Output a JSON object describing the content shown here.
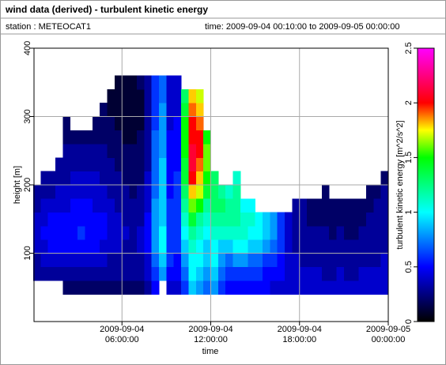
{
  "header": {
    "title": "wind data (derived) - turbulent kinetic energy",
    "station": "station : METEOCAT1",
    "time": "time: 2009-09-04 00:10:00 to 2009-09-05 00:00:00"
  },
  "chart_data": {
    "type": "heatmap",
    "xlabel": "time",
    "ylabel": "height [m]",
    "colorbar_label": "turbulent kinetic energy [m^2/s^2]",
    "xlim": [
      0,
      24
    ],
    "ylim": [
      0,
      400
    ],
    "clim": [
      0,
      2.5
    ],
    "xticks": [
      {
        "value": 6,
        "label": "2009-09-04\n06:00:00"
      },
      {
        "value": 12,
        "label": "2009-09-04\n12:00:00"
      },
      {
        "value": 18,
        "label": "2009-09-04\n18:00:00"
      },
      {
        "value": 24,
        "label": "2009-09-05\n00:00:00"
      }
    ],
    "yticks": [
      100,
      200,
      300,
      400
    ],
    "cticks": [
      0,
      0.5,
      1,
      1.5,
      2,
      2.5
    ],
    "grid": true,
    "colormap": [
      [
        0,
        "#000000"
      ],
      [
        0.5,
        "#0000ff"
      ],
      [
        1,
        "#00ffff"
      ],
      [
        1.5,
        "#00ff00"
      ],
      [
        1.75,
        "#ffff00"
      ],
      [
        2,
        "#ff0000"
      ],
      [
        2.5,
        "#ff00ff"
      ]
    ],
    "x_bins": [
      0,
      0.5,
      1,
      1.5,
      2,
      2.5,
      3,
      3.5,
      4,
      4.5,
      5,
      5.5,
      6,
      6.5,
      7,
      7.5,
      8,
      8.5,
      9,
      9.5,
      10,
      10.5,
      11,
      11.5,
      12,
      12.5,
      13,
      13.5,
      14,
      14.5,
      15,
      15.5,
      16,
      16.5,
      17,
      17.5,
      18,
      18.5,
      19,
      19.5,
      20,
      20.5,
      21,
      21.5,
      22,
      22.5,
      23,
      23.5,
      24
    ],
    "y_bins": [
      40,
      60,
      80,
      100,
      120,
      140,
      160,
      180,
      200,
      220,
      240,
      260,
      280,
      300,
      320,
      340,
      360,
      380
    ],
    "z": [
      [
        null,
        0.3,
        0.3,
        0.4,
        0.4,
        0.4,
        0.3,
        0.3,
        null,
        null,
        null,
        null,
        null,
        null,
        null,
        null,
        null
      ],
      [
        null,
        0.3,
        0.4,
        0.4,
        0.5,
        0.4,
        0.4,
        0.3,
        0.3,
        null,
        null,
        null,
        null,
        null,
        null,
        null,
        null
      ],
      [
        null,
        0.3,
        0.4,
        0.5,
        0.5,
        0.5,
        0.4,
        0.3,
        0.3,
        null,
        null,
        null,
        null,
        null,
        null,
        null,
        null
      ],
      [
        null,
        0.3,
        0.4,
        0.5,
        0.5,
        0.5,
        0.4,
        0.4,
        0.3,
        0.3,
        null,
        null,
        null,
        null,
        null,
        null,
        null
      ],
      [
        0.2,
        0.3,
        0.4,
        0.5,
        0.5,
        0.5,
        0.4,
        0.4,
        0.3,
        0.3,
        0.3,
        0.2,
        0.2,
        null,
        null,
        null,
        null
      ],
      [
        0.2,
        0.3,
        0.4,
        0.5,
        0.5,
        0.5,
        0.5,
        0.4,
        0.4,
        0.3,
        0.3,
        0.2,
        null,
        null,
        null,
        null,
        null
      ],
      [
        0.2,
        0.3,
        0.4,
        0.5,
        0.6,
        0.5,
        0.5,
        0.4,
        0.4,
        0.3,
        0.3,
        0.2,
        null,
        null,
        null,
        null,
        null
      ],
      [
        0.2,
        0.3,
        0.4,
        0.5,
        0.5,
        0.5,
        0.5,
        0.4,
        0.4,
        0.3,
        0.3,
        0.2,
        null,
        null,
        null,
        null,
        null
      ],
      [
        0.2,
        0.3,
        0.4,
        0.5,
        0.5,
        0.5,
        0.4,
        0.4,
        0.4,
        0.3,
        0.3,
        0.2,
        0.2,
        null,
        null,
        null,
        null
      ],
      [
        0.2,
        0.3,
        0.4,
        0.4,
        0.5,
        0.5,
        0.4,
        0.4,
        0.3,
        0.3,
        0.3,
        0.2,
        0.2,
        0.2,
        null,
        null,
        null
      ],
      [
        0.2,
        0.3,
        0.3,
        0.4,
        0.4,
        0.4,
        0.4,
        0.3,
        0.3,
        0.3,
        0.2,
        0.2,
        0.2,
        0.1,
        0.1,
        null,
        null
      ],
      [
        0.2,
        0.3,
        0.3,
        0.4,
        0.4,
        0.4,
        0.3,
        0.3,
        0.3,
        0.2,
        0.2,
        0.2,
        0.1,
        0.1,
        0.1,
        0.1,
        null
      ],
      [
        0.2,
        0.3,
        0.3,
        0.3,
        0.4,
        0.3,
        0.3,
        0.3,
        0.2,
        0.2,
        0.2,
        0.1,
        0.1,
        0.1,
        0.1,
        0.1,
        null
      ],
      [
        0.2,
        0.3,
        0.3,
        0.3,
        0.3,
        0.3,
        0.3,
        0.2,
        0.2,
        0.2,
        0.2,
        0.1,
        0.1,
        0.1,
        0.1,
        0.1,
        null
      ],
      [
        0.2,
        0.3,
        0.3,
        0.4,
        0.4,
        0.3,
        0.3,
        0.3,
        0.2,
        0.2,
        0.2,
        0.2,
        0.1,
        0.1,
        0.1,
        0.2,
        null
      ],
      [
        0.3,
        0.4,
        0.4,
        0.5,
        0.5,
        0.5,
        0.4,
        0.4,
        0.4,
        0.3,
        0.3,
        0.3,
        0.3,
        0.3,
        0.3,
        0.3,
        null
      ],
      [
        0.5,
        0.6,
        0.7,
        0.8,
        0.8,
        0.8,
        0.8,
        0.7,
        0.7,
        0.7,
        0.7,
        0.7,
        0.6,
        0.6,
        0.6,
        0.6,
        null
      ],
      [
        null,
        0.8,
        0.9,
        1,
        1,
        0.9,
        0.9,
        0.9,
        0.9,
        0.9,
        0.8,
        0.8,
        0.8,
        0.8,
        0.7,
        0.7,
        null
      ],
      [
        0.4,
        0.5,
        0.6,
        0.6,
        0.6,
        0.6,
        0.6,
        0.5,
        0.5,
        0.5,
        0.5,
        0.5,
        0.4,
        0.4,
        0.4,
        0.4,
        null
      ],
      [
        0.4,
        0.5,
        0.5,
        0.6,
        0.6,
        0.6,
        0.6,
        0.6,
        0.6,
        0.5,
        0.5,
        0.5,
        0.5,
        0.4,
        0.4,
        0.4,
        null
      ],
      [
        0.6,
        0.7,
        0.8,
        0.9,
        1,
        1.1,
        1.2,
        1.3,
        1.4,
        1.4,
        1.5,
        1.5,
        1.5,
        1.4,
        1.3,
        null,
        null
      ],
      [
        0.9,
        1,
        1,
        1.1,
        1.2,
        1.4,
        1.6,
        1.8,
        2,
        2.1,
        2.1,
        2,
        2,
        1.9,
        1.8,
        null,
        null
      ],
      [
        0.8,
        0.9,
        1,
        1,
        1.1,
        1.2,
        1.5,
        1.7,
        1.8,
        1.9,
        2,
        2,
        1.9,
        1.8,
        1.7,
        null,
        null
      ],
      [
        0.7,
        0.8,
        0.9,
        0.9,
        1,
        1.1,
        1.2,
        1.4,
        1.5,
        1.6,
        1.6,
        1.5,
        null,
        null,
        null,
        null,
        null
      ],
      [
        0.8,
        0.9,
        1,
        1,
        1.1,
        1.2,
        1.3,
        1.3,
        1.3,
        null,
        null,
        null,
        null,
        null,
        null,
        null,
        null
      ],
      [
        0.6,
        0.7,
        0.8,
        0.9,
        1.1,
        1.2,
        1.3,
        1.2,
        null,
        null,
        null,
        null,
        null,
        null,
        null,
        null,
        null
      ],
      [
        0.5,
        0.6,
        0.7,
        0.9,
        1.1,
        1.2,
        1.2,
        1.1,
        null,
        null,
        null,
        null,
        null,
        null,
        null,
        null,
        null
      ],
      [
        0.5,
        0.6,
        0.8,
        1,
        1.1,
        1.2,
        1.2,
        1.2,
        1.1,
        null,
        null,
        null,
        null,
        null,
        null,
        null,
        null
      ],
      [
        0.5,
        0.6,
        0.8,
        1,
        1.1,
        1.1,
        1,
        null,
        null,
        null,
        null,
        null,
        null,
        null,
        null,
        null,
        null
      ],
      [
        0.5,
        0.6,
        0.7,
        0.9,
        1,
        1.1,
        1,
        null,
        null,
        null,
        null,
        null,
        null,
        null,
        null,
        null,
        null
      ],
      [
        0.5,
        0.6,
        0.7,
        0.9,
        1,
        1,
        null,
        null,
        null,
        null,
        null,
        null,
        null,
        null,
        null,
        null,
        null
      ],
      [
        0.5,
        0.5,
        0.6,
        0.8,
        0.9,
        0.9,
        null,
        null,
        null,
        null,
        null,
        null,
        null,
        null,
        null,
        null,
        null
      ],
      [
        0.4,
        0.5,
        0.6,
        0.7,
        0.8,
        0.8,
        null,
        null,
        null,
        null,
        null,
        null,
        null,
        null,
        null,
        null,
        null
      ],
      [
        0.4,
        0.5,
        0.5,
        0.6,
        0.6,
        0.6,
        null,
        null,
        null,
        null,
        null,
        null,
        null,
        null,
        null,
        null,
        null
      ],
      [
        0.4,
        0.4,
        0.4,
        0.4,
        0.4,
        0.4,
        null,
        null,
        null,
        null,
        null,
        null,
        null,
        null,
        null,
        null,
        null
      ],
      [
        0.4,
        0.4,
        0.4,
        0.3,
        0.3,
        0.3,
        0.3,
        null,
        null,
        null,
        null,
        null,
        null,
        null,
        null,
        null,
        null
      ],
      [
        0.4,
        0.4,
        0.3,
        0.3,
        0.3,
        0.3,
        0.3,
        null,
        null,
        null,
        null,
        null,
        null,
        null,
        null,
        null,
        null
      ],
      [
        0.4,
        0.4,
        0.3,
        0.3,
        0.3,
        0.2,
        0.2,
        null,
        null,
        null,
        null,
        null,
        null,
        null,
        null,
        null,
        null
      ],
      [
        0.4,
        0.4,
        0.3,
        0.3,
        0.3,
        0.2,
        0.2,
        null,
        null,
        null,
        null,
        null,
        null,
        null,
        null,
        null,
        null
      ],
      [
        0.4,
        0.3,
        0.3,
        0.3,
        0.3,
        0.2,
        0.2,
        0.2,
        null,
        null,
        null,
        null,
        null,
        null,
        null,
        null,
        null
      ],
      [
        0.4,
        0.3,
        0.3,
        0.3,
        0.2,
        0.2,
        0.2,
        null,
        null,
        null,
        null,
        null,
        null,
        null,
        null,
        null,
        null
      ],
      [
        0.4,
        0.4,
        0.3,
        0.3,
        0.3,
        0.2,
        0.2,
        null,
        null,
        null,
        null,
        null,
        null,
        null,
        null,
        null,
        null
      ],
      [
        0.4,
        0.3,
        0.3,
        0.3,
        0.2,
        0.2,
        0.2,
        null,
        null,
        null,
        null,
        null,
        null,
        null,
        null,
        null,
        null
      ],
      [
        0.4,
        0.3,
        0.3,
        0.3,
        0.2,
        0.2,
        0.2,
        null,
        null,
        null,
        null,
        null,
        null,
        null,
        null,
        null,
        null
      ],
      [
        0.4,
        0.4,
        0.3,
        0.3,
        0.3,
        0.2,
        0.2,
        null,
        null,
        null,
        null,
        null,
        null,
        null,
        null,
        null,
        null
      ],
      [
        0.4,
        0.4,
        0.3,
        0.3,
        0.3,
        0.3,
        0.2,
        0.2,
        null,
        null,
        null,
        null,
        null,
        null,
        null,
        null,
        null
      ],
      [
        0.4,
        0.4,
        0.3,
        0.3,
        0.3,
        0.3,
        0.3,
        0.2,
        null,
        null,
        null,
        null,
        null,
        null,
        null,
        null,
        null
      ],
      [
        0.4,
        0.4,
        0.4,
        0.3,
        0.3,
        0.3,
        0.3,
        0.3,
        0.2,
        null,
        null,
        null,
        null,
        null,
        null,
        null,
        null
      ]
    ]
  }
}
